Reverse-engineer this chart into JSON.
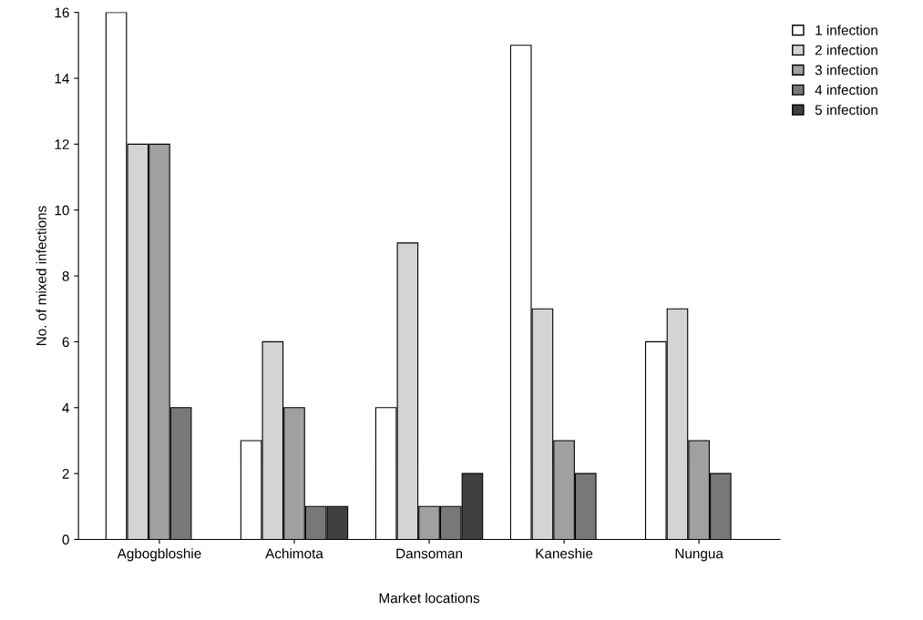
{
  "chart_data": {
    "type": "bar",
    "xlabel": "Market locations",
    "ylabel": "No. of mixed infections",
    "categories": [
      "Agbogbloshie",
      "Achimota",
      "Dansoman",
      "Kaneshie",
      "Nungua"
    ],
    "series": [
      {
        "name": "1 infection",
        "color": "#ffffff",
        "values": [
          16,
          3,
          4,
          15,
          6
        ]
      },
      {
        "name": "2 infection",
        "color": "#d4d4d4",
        "values": [
          12,
          6,
          9,
          7,
          7
        ]
      },
      {
        "name": "3 infection",
        "color": "#a0a0a0",
        "values": [
          12,
          4,
          1,
          3,
          3
        ]
      },
      {
        "name": "4 infection",
        "color": "#787878",
        "values": [
          4,
          1,
          1,
          2,
          2
        ]
      },
      {
        "name": "5 infection",
        "color": "#404040",
        "values": [
          0,
          1,
          2,
          0,
          0
        ]
      }
    ],
    "ylim": [
      0,
      16
    ],
    "yticks": [
      0,
      2,
      4,
      6,
      8,
      10,
      12,
      14,
      16
    ],
    "grid": false,
    "legend": "top right"
  }
}
